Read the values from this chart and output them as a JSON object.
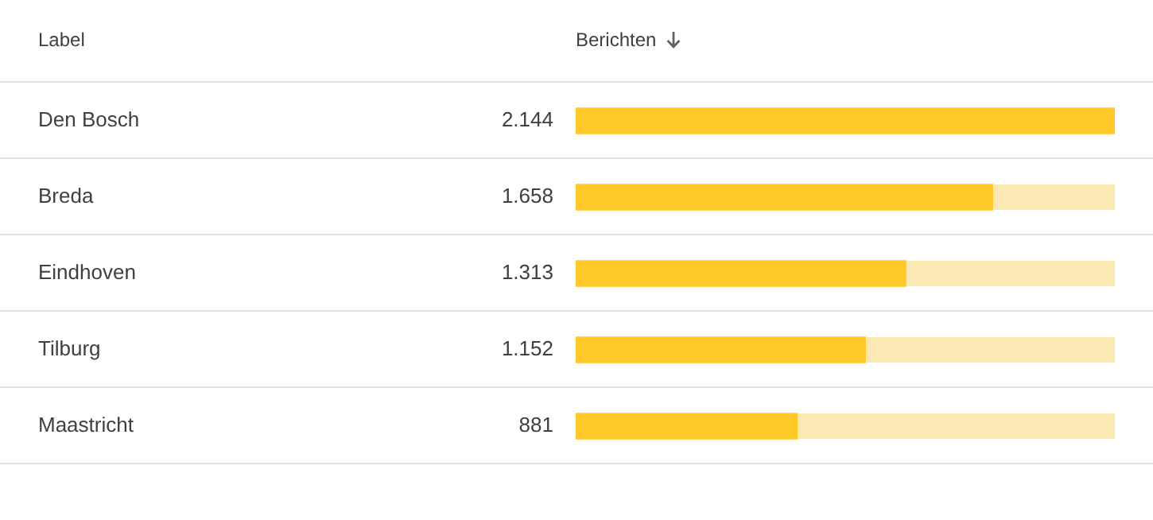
{
  "chart_data": {
    "type": "bar",
    "orientation": "horizontal",
    "ylabel": "Label",
    "xlabel": "Berichten",
    "categories": [
      "Den Bosch",
      "Breda",
      "Eindhoven",
      "Tilburg",
      "Maastricht"
    ],
    "values": [
      2144,
      1658,
      1313,
      1152,
      881
    ],
    "value_labels": [
      "2.144",
      "1.658",
      "1.313",
      "1.152",
      "881"
    ],
    "color": "#ffca28"
  }
}
